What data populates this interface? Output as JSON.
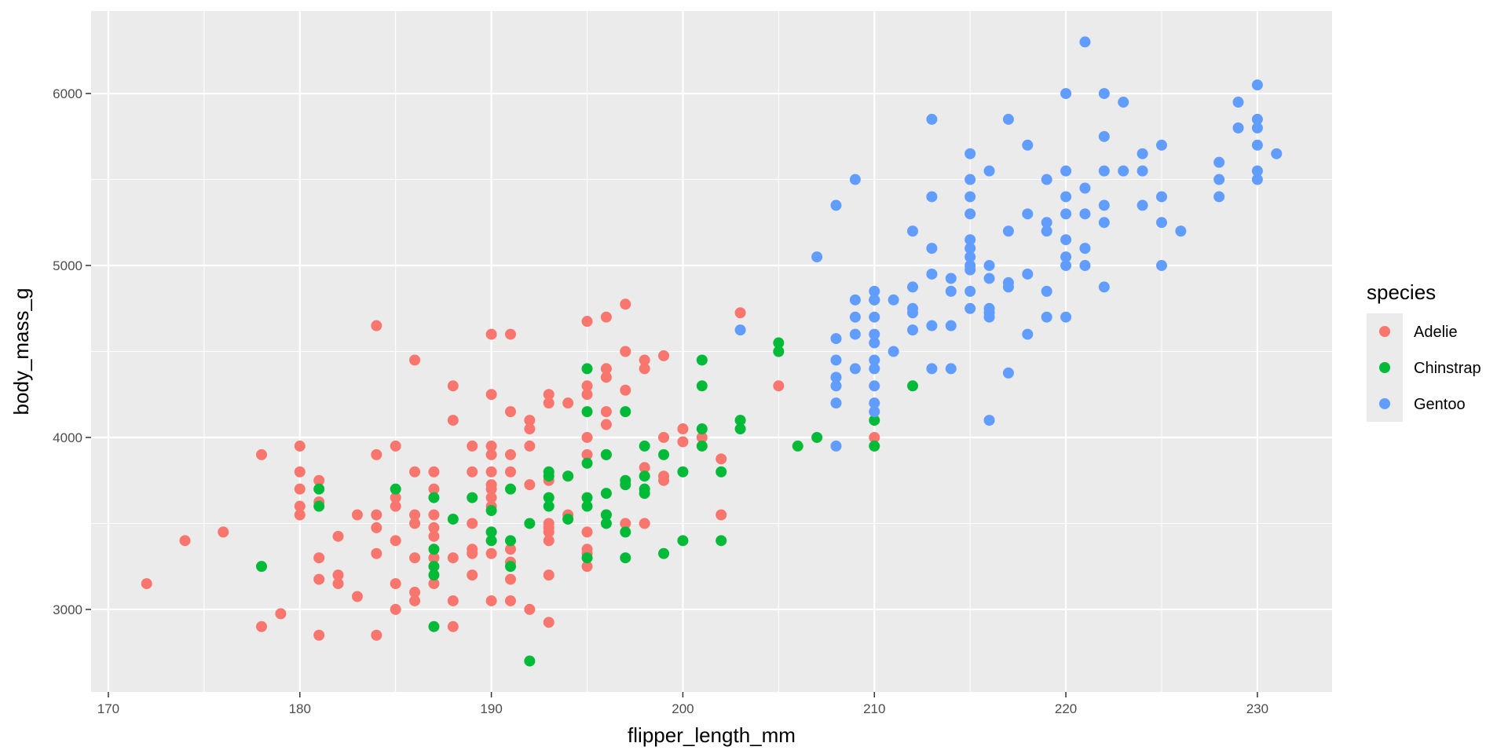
{
  "chart_data": {
    "type": "scatter",
    "title": "",
    "xlabel": "flipper_length_mm",
    "ylabel": "body_mass_g",
    "xlim": [
      169.1,
      233.9
    ],
    "ylim": [
      2520,
      6480
    ],
    "x_ticks": [
      170,
      180,
      190,
      200,
      210,
      220,
      230
    ],
    "y_ticks": [
      3000,
      4000,
      5000,
      6000
    ],
    "grid": true,
    "legend": {
      "title": "species",
      "position": "right"
    },
    "series": [
      {
        "name": "Adelie",
        "color": "#F8766D",
        "points": [
          [
            172,
            3150
          ],
          [
            174,
            3400
          ],
          [
            176,
            3450
          ],
          [
            178,
            3900
          ],
          [
            178,
            2900
          ],
          [
            179,
            2975
          ],
          [
            180,
            3950
          ],
          [
            180,
            3800
          ],
          [
            180,
            3700
          ],
          [
            180,
            3600
          ],
          [
            180,
            3550
          ],
          [
            181,
            3750
          ],
          [
            181,
            3625
          ],
          [
            181,
            3300
          ],
          [
            181,
            3175
          ],
          [
            181,
            2850
          ],
          [
            182,
            3425
          ],
          [
            182,
            3200
          ],
          [
            182,
            3150
          ],
          [
            183,
            3550
          ],
          [
            183,
            3075
          ],
          [
            184,
            4650
          ],
          [
            184,
            3900
          ],
          [
            184,
            3550
          ],
          [
            184,
            3475
          ],
          [
            184,
            3325
          ],
          [
            184,
            2850
          ],
          [
            185,
            3950
          ],
          [
            185,
            3650
          ],
          [
            185,
            3600
          ],
          [
            185,
            3400
          ],
          [
            185,
            3150
          ],
          [
            185,
            3000
          ],
          [
            186,
            4450
          ],
          [
            186,
            3800
          ],
          [
            186,
            3550
          ],
          [
            186,
            3500
          ],
          [
            186,
            3300
          ],
          [
            186,
            3100
          ],
          [
            186,
            3050
          ],
          [
            187,
            3800
          ],
          [
            187,
            3700
          ],
          [
            187,
            3550
          ],
          [
            187,
            3475
          ],
          [
            187,
            3425
          ],
          [
            187,
            3300
          ],
          [
            187,
            3150
          ],
          [
            188,
            4300
          ],
          [
            188,
            4100
          ],
          [
            188,
            3300
          ],
          [
            188,
            3050
          ],
          [
            188,
            2900
          ],
          [
            189,
            3950
          ],
          [
            189,
            3800
          ],
          [
            189,
            3500
          ],
          [
            189,
            3350
          ],
          [
            189,
            3325
          ],
          [
            189,
            3200
          ],
          [
            190,
            4600
          ],
          [
            190,
            4250
          ],
          [
            190,
            3950
          ],
          [
            190,
            3900
          ],
          [
            190,
            3800
          ],
          [
            190,
            3725
          ],
          [
            190,
            3700
          ],
          [
            190,
            3650
          ],
          [
            190,
            3600
          ],
          [
            190,
            3450
          ],
          [
            190,
            3325
          ],
          [
            190,
            3050
          ],
          [
            191,
            4600
          ],
          [
            191,
            4150
          ],
          [
            191,
            3900
          ],
          [
            191,
            3800
          ],
          [
            191,
            3350
          ],
          [
            191,
            3275
          ],
          [
            191,
            3175
          ],
          [
            191,
            3050
          ],
          [
            192,
            4100
          ],
          [
            192,
            4050
          ],
          [
            192,
            3950
          ],
          [
            192,
            3725
          ],
          [
            192,
            3000
          ],
          [
            193,
            4250
          ],
          [
            193,
            4200
          ],
          [
            193,
            3750
          ],
          [
            193,
            3500
          ],
          [
            193,
            3475
          ],
          [
            193,
            3450
          ],
          [
            193,
            3400
          ],
          [
            193,
            3200
          ],
          [
            193,
            2925
          ],
          [
            194,
            4200
          ],
          [
            194,
            3775
          ],
          [
            194,
            3550
          ],
          [
            195,
            4675
          ],
          [
            195,
            4300
          ],
          [
            195,
            4250
          ],
          [
            195,
            4000
          ],
          [
            195,
            3900
          ],
          [
            195,
            3450
          ],
          [
            195,
            3350
          ],
          [
            195,
            3325
          ],
          [
            195,
            3250
          ],
          [
            196,
            4700
          ],
          [
            196,
            4400
          ],
          [
            196,
            4350
          ],
          [
            196,
            4150
          ],
          [
            196,
            4075
          ],
          [
            196,
            3900
          ],
          [
            196,
            3550
          ],
          [
            197,
            4775
          ],
          [
            197,
            4500
          ],
          [
            197,
            4275
          ],
          [
            197,
            3500
          ],
          [
            198,
            4450
          ],
          [
            198,
            4400
          ],
          [
            198,
            3825
          ],
          [
            198,
            3500
          ],
          [
            199,
            4475
          ],
          [
            199,
            4000
          ],
          [
            199,
            3775
          ],
          [
            199,
            3750
          ],
          [
            200,
            4050
          ],
          [
            200,
            3975
          ],
          [
            201,
            4000
          ],
          [
            202,
            3875
          ],
          [
            202,
            3550
          ],
          [
            203,
            4725
          ],
          [
            205,
            4300
          ],
          [
            210,
            4000
          ]
        ]
      },
      {
        "name": "Chinstrap",
        "color": "#00BA38",
        "points": [
          [
            178,
            3250
          ],
          [
            181,
            3700
          ],
          [
            181,
            3600
          ],
          [
            185,
            3700
          ],
          [
            187,
            3650
          ],
          [
            187,
            3350
          ],
          [
            187,
            3250
          ],
          [
            187,
            3200
          ],
          [
            187,
            2900
          ],
          [
            188,
            3525
          ],
          [
            189,
            3650
          ],
          [
            190,
            3575
          ],
          [
            190,
            3450
          ],
          [
            190,
            3400
          ],
          [
            191,
            3700
          ],
          [
            191,
            3400
          ],
          [
            191,
            3250
          ],
          [
            192,
            3500
          ],
          [
            192,
            2700
          ],
          [
            193,
            3800
          ],
          [
            193,
            3775
          ],
          [
            193,
            3650
          ],
          [
            193,
            3600
          ],
          [
            194,
            3775
          ],
          [
            194,
            3525
          ],
          [
            195,
            4400
          ],
          [
            195,
            4150
          ],
          [
            195,
            3850
          ],
          [
            195,
            3650
          ],
          [
            195,
            3600
          ],
          [
            195,
            3300
          ],
          [
            196,
            3900
          ],
          [
            196,
            3675
          ],
          [
            196,
            3550
          ],
          [
            196,
            3500
          ],
          [
            197,
            4150
          ],
          [
            197,
            3750
          ],
          [
            197,
            3725
          ],
          [
            197,
            3450
          ],
          [
            197,
            3300
          ],
          [
            198,
            3950
          ],
          [
            198,
            3775
          ],
          [
            198,
            3700
          ],
          [
            198,
            3675
          ],
          [
            199,
            3900
          ],
          [
            199,
            3325
          ],
          [
            200,
            3800
          ],
          [
            200,
            3400
          ],
          [
            201,
            4450
          ],
          [
            201,
            4300
          ],
          [
            201,
            4050
          ],
          [
            201,
            3950
          ],
          [
            202,
            3800
          ],
          [
            202,
            3400
          ],
          [
            203,
            4100
          ],
          [
            203,
            4050
          ],
          [
            205,
            4550
          ],
          [
            205,
            4500
          ],
          [
            206,
            3950
          ],
          [
            207,
            4000
          ],
          [
            210,
            4800
          ],
          [
            210,
            4100
          ],
          [
            210,
            3950
          ],
          [
            212,
            4300
          ]
        ]
      },
      {
        "name": "Gentoo",
        "color": "#619CFF",
        "points": [
          [
            203,
            4625
          ],
          [
            207,
            5050
          ],
          [
            208,
            5350
          ],
          [
            208,
            4575
          ],
          [
            208,
            4450
          ],
          [
            208,
            4350
          ],
          [
            208,
            4300
          ],
          [
            208,
            4200
          ],
          [
            208,
            3950
          ],
          [
            209,
            5500
          ],
          [
            209,
            4800
          ],
          [
            209,
            4700
          ],
          [
            209,
            4600
          ],
          [
            209,
            4400
          ],
          [
            210,
            4850
          ],
          [
            210,
            4800
          ],
          [
            210,
            4700
          ],
          [
            210,
            4600
          ],
          [
            210,
            4550
          ],
          [
            210,
            4450
          ],
          [
            210,
            4400
          ],
          [
            210,
            4300
          ],
          [
            210,
            4200
          ],
          [
            210,
            4150
          ],
          [
            211,
            4800
          ],
          [
            211,
            4500
          ],
          [
            212,
            5200
          ],
          [
            212,
            4875
          ],
          [
            212,
            4750
          ],
          [
            212,
            4725
          ],
          [
            212,
            4625
          ],
          [
            213,
            5850
          ],
          [
            213,
            5400
          ],
          [
            213,
            5100
          ],
          [
            213,
            4950
          ],
          [
            213,
            4650
          ],
          [
            213,
            4400
          ],
          [
            214,
            4925
          ],
          [
            214,
            4850
          ],
          [
            214,
            4650
          ],
          [
            214,
            4400
          ],
          [
            215,
            5650
          ],
          [
            215,
            5500
          ],
          [
            215,
            5400
          ],
          [
            215,
            5300
          ],
          [
            215,
            5150
          ],
          [
            215,
            5100
          ],
          [
            215,
            5050
          ],
          [
            215,
            5000
          ],
          [
            215,
            4975
          ],
          [
            215,
            4850
          ],
          [
            215,
            4750
          ],
          [
            216,
            5550
          ],
          [
            216,
            5000
          ],
          [
            216,
            4925
          ],
          [
            216,
            4750
          ],
          [
            216,
            4725
          ],
          [
            216,
            4700
          ],
          [
            216,
            4100
          ],
          [
            217,
            5850
          ],
          [
            217,
            5200
          ],
          [
            217,
            4900
          ],
          [
            217,
            4875
          ],
          [
            217,
            4375
          ],
          [
            218,
            5700
          ],
          [
            218,
            5300
          ],
          [
            218,
            4950
          ],
          [
            218,
            4600
          ],
          [
            219,
            5500
          ],
          [
            219,
            5250
          ],
          [
            219,
            5200
          ],
          [
            219,
            4850
          ],
          [
            219,
            4700
          ],
          [
            220,
            6000
          ],
          [
            220,
            5550
          ],
          [
            220,
            5400
          ],
          [
            220,
            5300
          ],
          [
            220,
            5150
          ],
          [
            220,
            5050
          ],
          [
            220,
            5000
          ],
          [
            220,
            4700
          ],
          [
            221,
            6300
          ],
          [
            221,
            5450
          ],
          [
            221,
            5300
          ],
          [
            221,
            5100
          ],
          [
            221,
            5000
          ],
          [
            222,
            6000
          ],
          [
            222,
            5750
          ],
          [
            222,
            5550
          ],
          [
            222,
            5350
          ],
          [
            222,
            5250
          ],
          [
            222,
            4875
          ],
          [
            223,
            5950
          ],
          [
            223,
            5550
          ],
          [
            224,
            5650
          ],
          [
            224,
            5550
          ],
          [
            224,
            5350
          ],
          [
            225,
            5700
          ],
          [
            225,
            5400
          ],
          [
            225,
            5250
          ],
          [
            225,
            5000
          ],
          [
            226,
            5200
          ],
          [
            228,
            5600
          ],
          [
            228,
            5500
          ],
          [
            228,
            5400
          ],
          [
            229,
            5950
          ],
          [
            229,
            5800
          ],
          [
            230,
            6050
          ],
          [
            230,
            5850
          ],
          [
            230,
            5800
          ],
          [
            230,
            5700
          ],
          [
            230,
            5550
          ],
          [
            230,
            5500
          ],
          [
            231,
            5650
          ]
        ]
      }
    ]
  }
}
